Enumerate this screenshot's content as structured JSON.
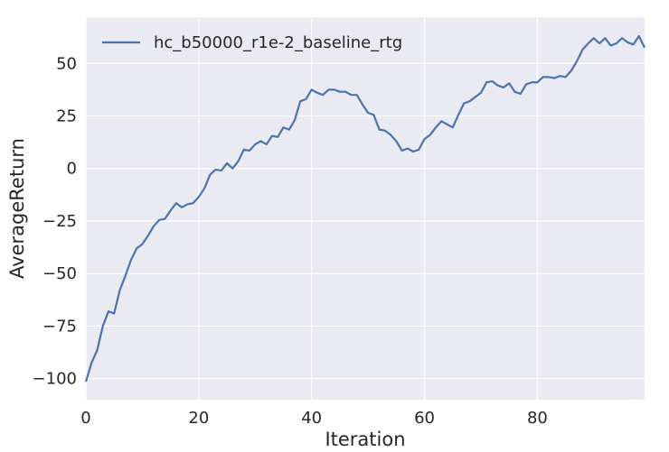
{
  "chart_data": {
    "type": "line",
    "title": "",
    "xlabel": "Iteration",
    "ylabel": "AverageReturn",
    "xlim": [
      0,
      99
    ],
    "ylim": [
      -110,
      72
    ],
    "xticks": [
      0,
      20,
      40,
      60,
      80
    ],
    "yticks": [
      -100,
      -75,
      -50,
      -25,
      0,
      25,
      50
    ],
    "xtick_labels": [
      "0",
      "20",
      "40",
      "60",
      "80"
    ],
    "ytick_labels": [
      "−100",
      "−75",
      "−50",
      "−25",
      "0",
      "25",
      "50"
    ],
    "grid": true,
    "legend_position": "top-left",
    "colors": {
      "background": "#eaeaf2",
      "grid": "#ffffff",
      "series": "#4c72b0"
    },
    "series": [
      {
        "name": "hc_b50000_r1e-2_baseline_rtg",
        "x": [
          0,
          1,
          2,
          3,
          4,
          5,
          6,
          7,
          8,
          9,
          10,
          11,
          12,
          13,
          14,
          15,
          16,
          17,
          18,
          19,
          20,
          21,
          22,
          23,
          24,
          25,
          26,
          27,
          28,
          29,
          30,
          31,
          32,
          33,
          34,
          35,
          36,
          37,
          38,
          39,
          40,
          41,
          42,
          43,
          44,
          45,
          46,
          47,
          48,
          49,
          50,
          51,
          52,
          53,
          54,
          55,
          56,
          57,
          58,
          59,
          60,
          61,
          62,
          63,
          64,
          65,
          66,
          67,
          68,
          69,
          70,
          71,
          72,
          73,
          74,
          75,
          76,
          77,
          78,
          79,
          80,
          81,
          82,
          83,
          84,
          85,
          86,
          87,
          88,
          89,
          90,
          91,
          92,
          93,
          94,
          95,
          96,
          97,
          98,
          99
        ],
        "values": [
          -101.5,
          -92.5,
          -86.5,
          -75,
          -68,
          -69,
          -58,
          -51,
          -43.5,
          -38,
          -36,
          -32,
          -27.5,
          -24.5,
          -24,
          -20,
          -16.5,
          -18.5,
          -17,
          -16.5,
          -13.5,
          -9.5,
          -3,
          -0.5,
          -1,
          2.5,
          0,
          3.5,
          9,
          8.5,
          11.5,
          13,
          11.5,
          15.5,
          15,
          19.5,
          18.5,
          23,
          32,
          33,
          37.5,
          36,
          35,
          37.5,
          37.5,
          36.5,
          36.5,
          35,
          35,
          30.5,
          26.5,
          25.5,
          18.5,
          18,
          16,
          13,
          8.5,
          9.5,
          8,
          9,
          14,
          16,
          19.5,
          22.5,
          21,
          19.5,
          25.5,
          31,
          32,
          34,
          36,
          41,
          41.5,
          39.5,
          38.5,
          40.5,
          36.5,
          35.5,
          40,
          41,
          41,
          43.5,
          43.5,
          43,
          44,
          43.5,
          46.5,
          51,
          56.5,
          59.5,
          62,
          59.5,
          62,
          58.5,
          59.5,
          62,
          60,
          59,
          63,
          57.5
        ]
      }
    ]
  }
}
